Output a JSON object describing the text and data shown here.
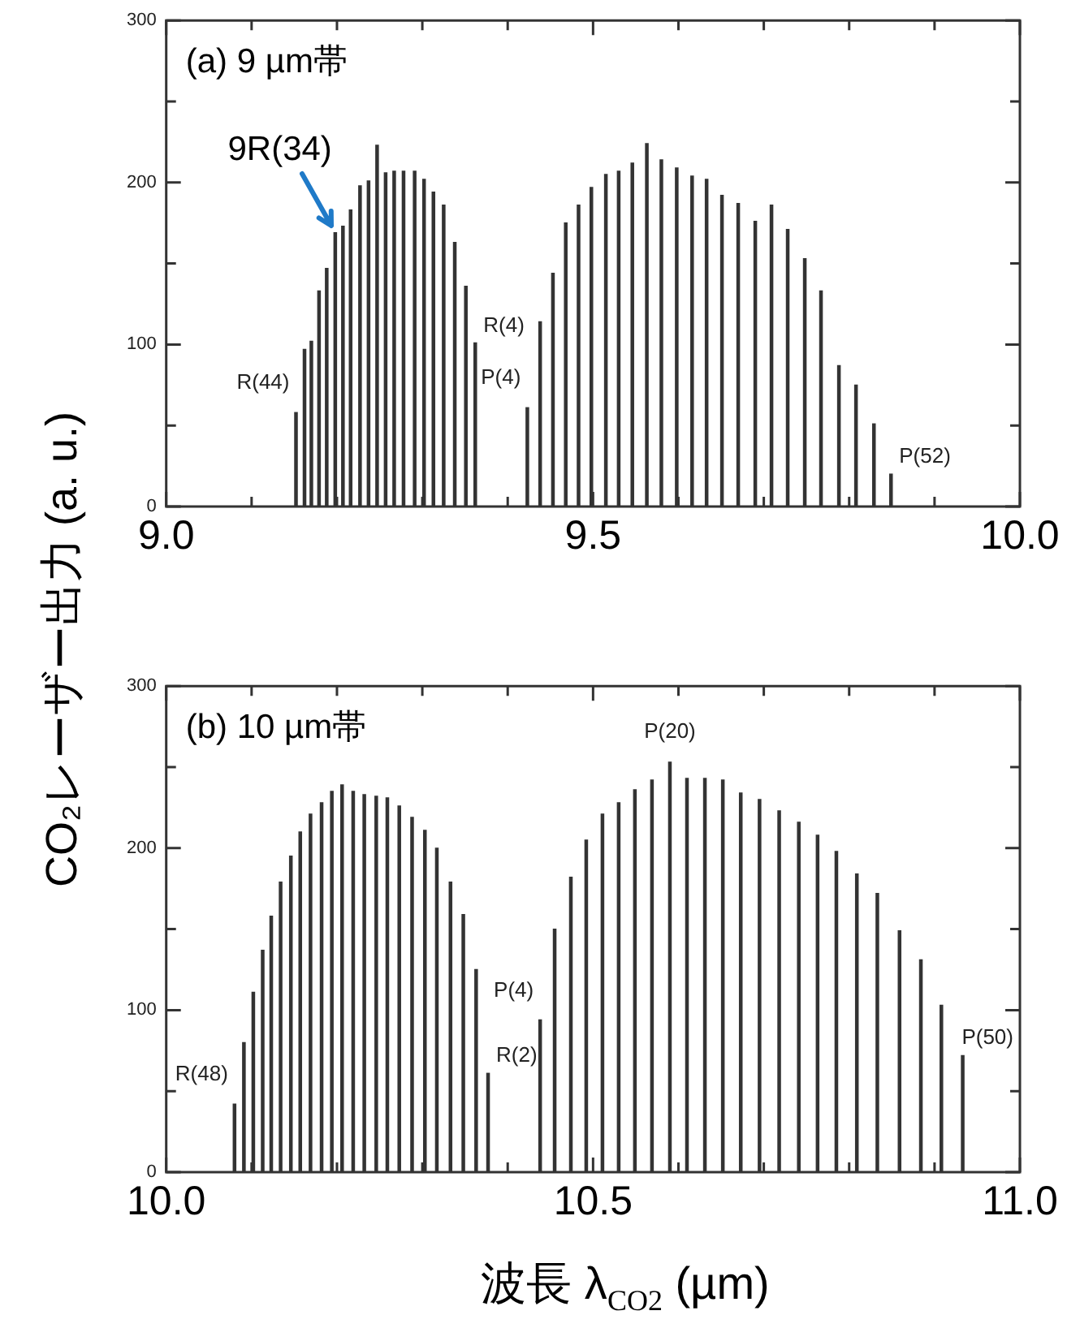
{
  "chart_data": [
    {
      "type": "bar",
      "title": "(a) 9 µm帯",
      "ylabel": "CO₂レーザー出力 (a. u.)",
      "x": [
        9.152,
        9.162,
        9.17,
        9.179,
        9.188,
        9.198,
        9.207,
        9.216,
        9.227,
        9.237,
        9.247,
        9.257,
        9.267,
        9.278,
        9.291,
        9.302,
        9.313,
        9.325,
        9.338,
        9.351,
        9.362,
        9.423,
        9.438,
        9.453,
        9.468,
        9.483,
        9.498,
        9.515,
        9.53,
        9.546,
        9.563,
        9.58,
        9.598,
        9.616,
        9.633,
        9.651,
        9.67,
        9.69,
        9.709,
        9.728,
        9.748,
        9.767,
        9.788,
        9.808,
        9.829,
        9.849
      ],
      "values": [
        58,
        97,
        102,
        133,
        147,
        169,
        173,
        183,
        198,
        201,
        223,
        206,
        207,
        207,
        207,
        202,
        194,
        186,
        163,
        136,
        101,
        61,
        114,
        144,
        175,
        186,
        197,
        205,
        207,
        212,
        224,
        214,
        209,
        204,
        202,
        192,
        187,
        176,
        186,
        171,
        153,
        133,
        87,
        75,
        51,
        20
      ],
      "color": "#333333",
      "xlim": [
        9,
        10
      ],
      "xticks": [
        {
          "value": 9,
          "label": "9.0"
        },
        {
          "value": 9.1,
          "label": null
        },
        {
          "value": 9.2,
          "label": null
        },
        {
          "value": 9.3,
          "label": null
        },
        {
          "value": 9.4,
          "label": null
        },
        9.5,
        {
          "value": 9.6,
          "label": null
        },
        {
          "value": 9.7,
          "label": null
        },
        {
          "value": 9.8,
          "label": null
        },
        {
          "value": 9.9,
          "label": null
        },
        {
          "value": 10,
          "label": "10.0"
        }
      ],
      "ylim": [
        0,
        300
      ],
      "yticks": [
        0,
        {
          "value": 50,
          "label": null
        },
        100,
        {
          "value": 150,
          "label": null
        },
        200,
        {
          "value": 250,
          "label": null
        },
        300
      ],
      "annotations": [
        {
          "text": "9R(34)",
          "x": 9.198,
          "y": 169
        },
        {
          "text": "R(44)",
          "x": 9.152,
          "y": 58
        },
        {
          "text": "R(4)",
          "x": 9.362,
          "y": 101
        },
        {
          "text": "P(4)",
          "x": 9.423,
          "y": 61
        },
        {
          "text": "P(52)",
          "x": 9.849,
          "y": 20
        }
      ],
      "grid": false,
      "legend": false
    },
    {
      "type": "bar",
      "title": "(b) 10 µm帯",
      "xlabel": "波長 λ$_{CO2}$ (µm)",
      "x": [
        10.08,
        10.091,
        10.102,
        10.113,
        10.123,
        10.134,
        10.146,
        10.157,
        10.169,
        10.182,
        10.194,
        10.206,
        10.219,
        10.232,
        10.246,
        10.259,
        10.273,
        10.288,
        10.303,
        10.317,
        10.333,
        10.348,
        10.363,
        10.377,
        10.438,
        10.455,
        10.474,
        10.492,
        10.511,
        10.53,
        10.549,
        10.569,
        10.59,
        10.61,
        10.631,
        10.652,
        10.673,
        10.695,
        10.718,
        10.741,
        10.763,
        10.785,
        10.809,
        10.833,
        10.859,
        10.884,
        10.908,
        10.933
      ],
      "values": [
        42,
        80,
        111,
        137,
        158,
        179,
        195,
        210,
        221,
        228,
        235,
        239,
        235,
        233,
        232,
        231,
        226,
        219,
        211,
        200,
        179,
        159,
        125,
        61,
        94,
        150,
        182,
        205,
        221,
        228,
        236,
        242,
        253,
        243,
        243,
        242,
        234,
        230,
        223,
        216,
        208,
        198,
        184,
        172,
        149,
        131,
        103,
        72
      ],
      "color": "#333333",
      "xlim": [
        10,
        11
      ],
      "xticks": [
        {
          "value": 10,
          "label": "10.0"
        },
        {
          "value": 10.1,
          "label": null
        },
        {
          "value": 10.2,
          "label": null
        },
        {
          "value": 10.3,
          "label": null
        },
        {
          "value": 10.4,
          "label": null
        },
        10.5,
        {
          "value": 10.6,
          "label": null
        },
        {
          "value": 10.7,
          "label": null
        },
        {
          "value": 10.8,
          "label": null
        },
        {
          "value": 10.9,
          "label": null
        },
        {
          "value": 11,
          "label": "11.0"
        }
      ],
      "ylim": [
        0,
        300
      ],
      "yticks": [
        0,
        {
          "value": 50,
          "label": null
        },
        100,
        {
          "value": 150,
          "label": null
        },
        200,
        {
          "value": 250,
          "label": null
        },
        300
      ],
      "annotations": [
        {
          "text": "R(48)",
          "x": 10.08,
          "y": 42
        },
        {
          "text": "R(2)",
          "x": 10.377,
          "y": 61
        },
        {
          "text": "P(4)",
          "x": 10.438,
          "y": 94
        },
        {
          "text": "P(20)",
          "x": 10.59,
          "y": 253
        },
        {
          "text": "P(50)",
          "x": 10.933,
          "y": 72
        }
      ],
      "grid": false,
      "legend": false
    }
  ]
}
